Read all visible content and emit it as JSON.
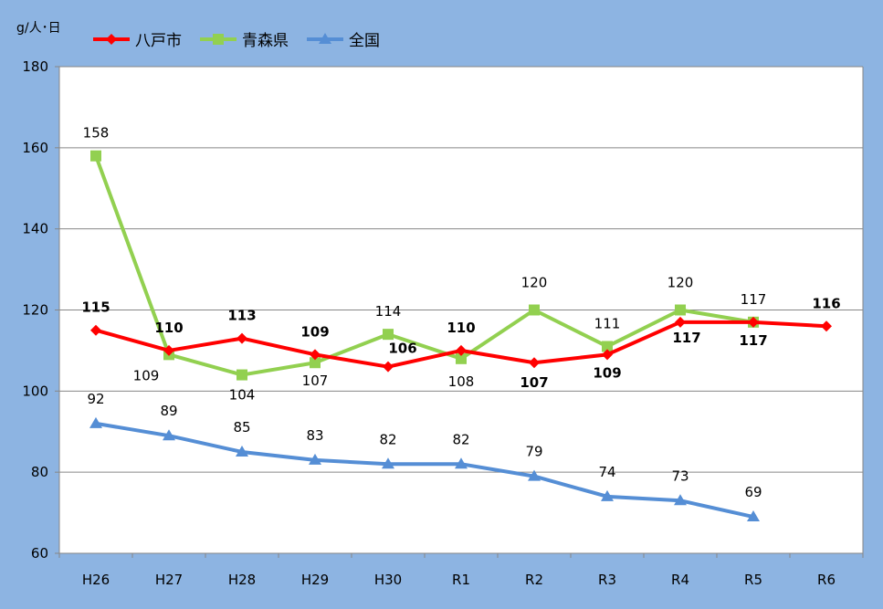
{
  "chart_data": {
    "type": "line",
    "unit": "g/人･日",
    "categories": [
      "H26",
      "H27",
      "H28",
      "H29",
      "H30",
      "R1",
      "R2",
      "R3",
      "R4",
      "R5",
      "R6"
    ],
    "ylim": [
      60,
      180
    ],
    "yticks": [
      60,
      80,
      100,
      120,
      140,
      160,
      180
    ],
    "grid": true,
    "legend_position": "top-left",
    "series": [
      {
        "name": "八戸市",
        "color": "#ff0000",
        "marker": "diamond",
        "label_weight": "bold",
        "values": [
          115,
          110,
          113,
          109,
          106,
          110,
          107,
          109,
          117,
          117,
          116
        ]
      },
      {
        "name": "青森県",
        "color": "#92d050",
        "marker": "square",
        "label_weight": "normal",
        "values": [
          158,
          109,
          104,
          107,
          114,
          108,
          120,
          111,
          120,
          117,
          null
        ]
      },
      {
        "name": "全国",
        "color": "#558ed5",
        "marker": "triangle",
        "label_weight": "normal",
        "values": [
          92,
          89,
          85,
          83,
          82,
          82,
          79,
          74,
          73,
          69,
          null
        ]
      }
    ]
  }
}
